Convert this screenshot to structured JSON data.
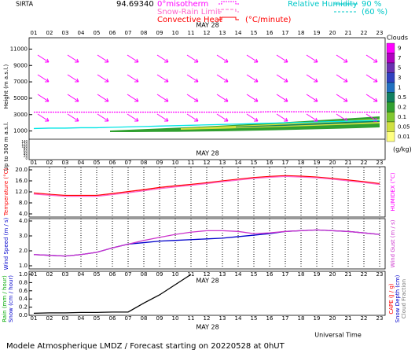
{
  "header": {
    "station": "SIRTA",
    "coords": "94.69340",
    "isotherm": "0°misotherm",
    "snow_rain": "Snow-Rain Limit",
    "convective": "Convective Heat",
    "convective_unit": "(°C/minute)",
    "rh": "Relative Humidity",
    "rh_high": "90 %",
    "rh_low": "(60 %)",
    "date": "MAY 28"
  },
  "footer": {
    "title": "Modele Atmospherique LMDZ / Forecast starting on 20220528 at 0hUT",
    "x_axis": "Universal Time"
  },
  "chart_data": [
    {
      "type": "profile",
      "ylabel": "Height (m a.s.l.)",
      "ylabel_low": "Up to 300 m a.s.l.",
      "categories": [
        "01",
        "02",
        "03",
        "04",
        "05",
        "06",
        "07",
        "08",
        "09",
        "10",
        "11",
        "12",
        "13",
        "14",
        "15",
        "16",
        "17",
        "18",
        "19",
        "20",
        "21",
        "22",
        "23"
      ],
      "ylim": [
        0,
        12000
      ],
      "yticks": [
        1000,
        3000,
        5000,
        7000,
        9000,
        11000
      ],
      "ylim_low": [
        0,
        150
      ],
      "yticks_low": [
        0,
        20,
        40,
        60,
        80,
        100,
        120,
        140
      ],
      "series": [
        {
          "color": "#ff00ff",
          "values": [
            3300,
            3300,
            3300,
            3300,
            3300,
            3300,
            3300,
            3300,
            3300,
            3300,
            3300,
            3300,
            3300,
            3300,
            3300,
            3350,
            3350,
            3350,
            3350,
            3350,
            3300,
            3300,
            3300
          ]
        },
        {
          "color": "#00e5e5",
          "values": [
            1300,
            1350,
            1350,
            1400,
            1400,
            1450,
            1500,
            1550,
            1600,
            1650,
            1700,
            1750,
            1800,
            1850,
            1900,
            1950,
            2000,
            2050,
            2100,
            2150,
            2200,
            2250,
            2300
          ]
        }
      ],
      "colorbar": {
        "title": "Clouds",
        "unit": "(g/kg)",
        "levels": [
          9,
          7,
          5,
          3,
          1,
          0.5,
          0.2,
          0.1,
          0.05,
          0.01
        ],
        "colors": [
          "#ff00ff",
          "#b000c0",
          "#6a2fb0",
          "#3040c0",
          "#2070c0",
          "#108060",
          "#30a030",
          "#80c830",
          "#d0e040",
          "#ffff80"
        ]
      }
    },
    {
      "type": "line",
      "ylabel": "Temperature (°C)",
      "y2label": "HUMIDEX (°C)",
      "categories": [
        "01",
        "02",
        "03",
        "04",
        "05",
        "06",
        "07",
        "08",
        "09",
        "10",
        "11",
        "12",
        "13",
        "14",
        "15",
        "16",
        "17",
        "18",
        "19",
        "20",
        "21",
        "22",
        "23"
      ],
      "ylim": [
        4,
        20
      ],
      "yticks": [
        {
          "value": 4,
          "label": "4.0"
        },
        {
          "value": 8,
          "label": "8.0"
        },
        {
          "value": 12,
          "label": "12.0"
        },
        {
          "value": 16,
          "label": "16.0"
        },
        {
          "value": 20,
          "label": "20.0"
        }
      ],
      "series": [
        {
          "name": "Temperature",
          "color": "#ff0000",
          "values": [
            11.6,
            11.1,
            10.7,
            10.7,
            10.7,
            11.4,
            12.1,
            12.8,
            13.6,
            14.2,
            14.7,
            15.3,
            16.0,
            16.6,
            17.2,
            17.6,
            17.9,
            17.7,
            17.4,
            16.9,
            16.3,
            15.7,
            15.0
          ]
        },
        {
          "name": "HUMIDEX",
          "color": "#ff66cc",
          "values": [
            11.2,
            10.8,
            10.4,
            10.4,
            10.4,
            11.0,
            11.7,
            12.4,
            13.2,
            13.8,
            14.4,
            15.0,
            15.7,
            16.3,
            16.9,
            17.3,
            17.6,
            17.4,
            17.1,
            16.6,
            16.0,
            15.4,
            14.7
          ]
        }
      ]
    },
    {
      "type": "line",
      "ylabel": "Wind Speed (m / s)",
      "y2label": "Wind Gust (m / s)",
      "ylim": [
        1,
        4
      ],
      "yticks": [
        {
          "value": 1,
          "label": "1.0"
        },
        {
          "value": 2,
          "label": "2.0"
        },
        {
          "value": 3,
          "label": "3.0"
        },
        {
          "value": 4,
          "label": "4.0"
        }
      ],
      "series": [
        {
          "name": "Wind Speed",
          "color": "#0000cc",
          "values": [
            1.75,
            1.7,
            1.65,
            1.75,
            1.9,
            2.2,
            2.45,
            2.55,
            2.65,
            2.7,
            2.75,
            2.8,
            2.85,
            2.95,
            3.05,
            3.15,
            3.3,
            3.35,
            3.4,
            3.35,
            3.3,
            3.2,
            3.1
          ]
        },
        {
          "name": "Wind Gust",
          "color": "#cc33cc",
          "values": [
            1.75,
            1.7,
            1.65,
            1.75,
            1.9,
            2.2,
            2.45,
            2.7,
            2.9,
            3.1,
            3.25,
            3.35,
            3.35,
            3.3,
            3.15,
            3.2,
            3.3,
            3.35,
            3.4,
            3.35,
            3.3,
            3.2,
            3.1
          ]
        }
      ]
    },
    {
      "type": "line",
      "ylabels": [
        "Rain (mm / hour)",
        "Snow (cm / hour)"
      ],
      "y2labels": [
        "CAPE (J / g)",
        "Snow Depth (cm)",
        "Cloud Fraction"
      ],
      "categories": [
        "01",
        "02",
        "03",
        "04",
        "05",
        "06",
        "07",
        "08",
        "09",
        "10",
        "11",
        "12",
        "13",
        "14",
        "15",
        "16",
        "17",
        "18",
        "19",
        "20",
        "21",
        "22",
        "23"
      ],
      "ylim": [
        0,
        1
      ],
      "yticks": [
        {
          "value": 0,
          "label": "0.0"
        },
        0.2,
        0.4,
        0.6,
        0.8,
        {
          "value": 1,
          "label": "1.0"
        }
      ],
      "series": [
        {
          "color": "#000000",
          "values": [
            0.05,
            0.06,
            0.06,
            0.07,
            0.07,
            0.08,
            0.08,
            0.3,
            0.5,
            0.75,
            1,
            null,
            null,
            null,
            null,
            null,
            null,
            null,
            null,
            null,
            null,
            null,
            null
          ]
        }
      ]
    }
  ]
}
